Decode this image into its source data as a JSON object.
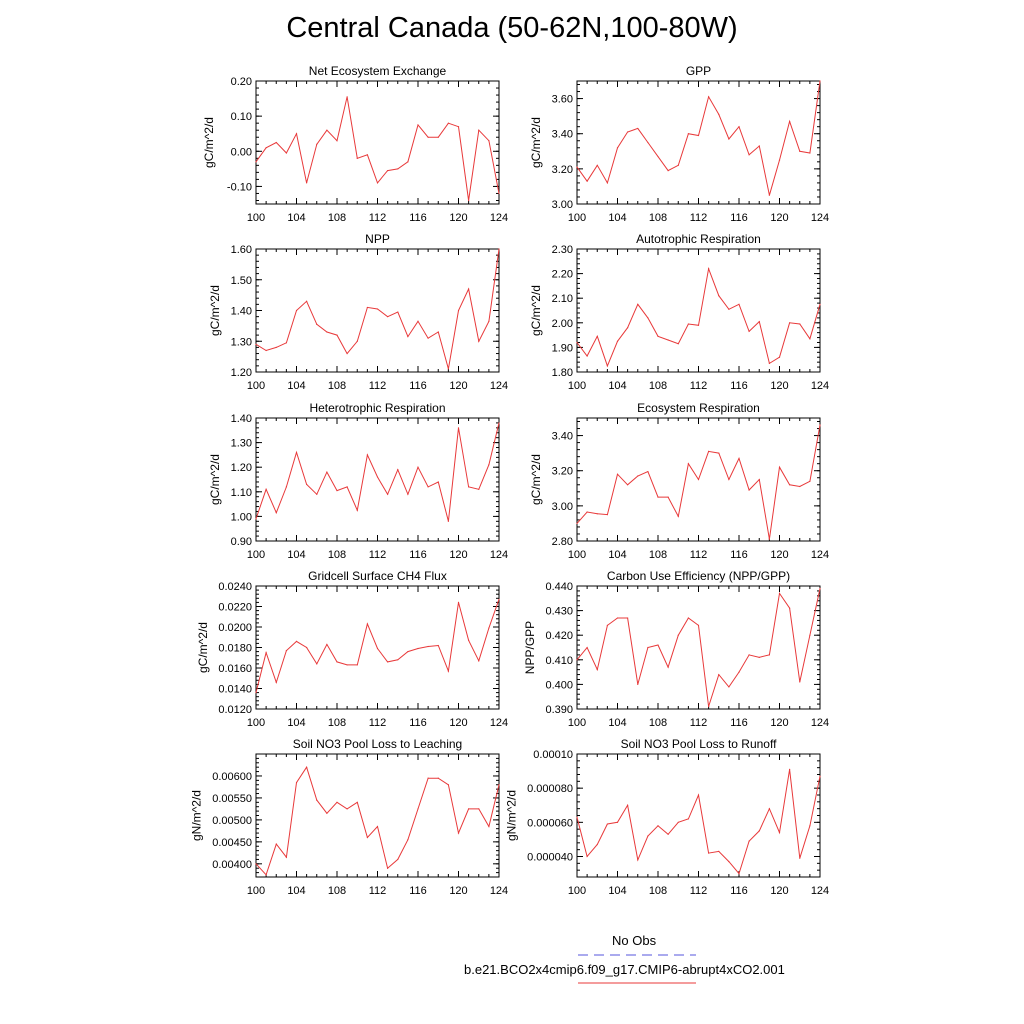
{
  "title": "Central Canada (50-62N,100-80W)",
  "legend": {
    "obs_label": "No Obs",
    "obs_color": "#5555dd",
    "model_label": "b.e21.BCO2x4cmip6.f09_g17.CMIP6-abrupt4xCO2.001",
    "model_color": "#e8393a"
  },
  "chart_data": [
    {
      "type": "line",
      "title": "Net Ecosystem Exchange",
      "ylabel": "gC/m^2/d",
      "xlim": [
        100,
        124
      ],
      "ylim": [
        -0.15,
        0.2
      ],
      "xticks": [
        "100",
        "104",
        "108",
        "112",
        "116",
        "120",
        "124"
      ],
      "yticks": [
        "-0.10",
        "0.00",
        "0.10",
        "0.20"
      ],
      "x": [
        100,
        101,
        102,
        103,
        104,
        105,
        106,
        107,
        108,
        109,
        110,
        111,
        112,
        113,
        114,
        115,
        116,
        117,
        118,
        119,
        120,
        121,
        122,
        123,
        124
      ],
      "series": [
        {
          "values": [
            -0.03,
            0.01,
            0.025,
            -0.005,
            0.05,
            -0.09,
            0.02,
            0.06,
            0.03,
            0.155,
            -0.02,
            -0.01,
            -0.09,
            -0.055,
            -0.05,
            -0.03,
            0.075,
            0.04,
            0.04,
            0.08,
            0.07,
            -0.14,
            0.06,
            0.03,
            -0.12
          ]
        }
      ]
    },
    {
      "type": "line",
      "title": "GPP",
      "ylabel": "gC/m^2/d",
      "xlim": [
        100,
        124
      ],
      "ylim": [
        3.0,
        3.7
      ],
      "xticks": [
        "100",
        "104",
        "108",
        "112",
        "116",
        "120",
        "124"
      ],
      "yticks": [
        "3.00",
        "3.20",
        "3.40",
        "3.60"
      ],
      "x": [
        100,
        101,
        102,
        103,
        104,
        105,
        106,
        107,
        108,
        109,
        110,
        111,
        112,
        113,
        114,
        115,
        116,
        117,
        118,
        119,
        120,
        121,
        122,
        123,
        124
      ],
      "series": [
        {
          "values": [
            3.21,
            3.13,
            3.22,
            3.12,
            3.32,
            3.41,
            3.43,
            3.35,
            3.27,
            3.19,
            3.22,
            3.4,
            3.39,
            3.61,
            3.51,
            3.37,
            3.44,
            3.28,
            3.33,
            3.05,
            3.25,
            3.47,
            3.3,
            3.29,
            3.7
          ]
        }
      ]
    },
    {
      "type": "line",
      "title": "NPP",
      "ylabel": "gC/m^2/d",
      "xlim": [
        100,
        124
      ],
      "ylim": [
        1.2,
        1.6
      ],
      "xticks": [
        "100",
        "104",
        "108",
        "112",
        "116",
        "120",
        "124"
      ],
      "yticks": [
        "1.20",
        "1.30",
        "1.40",
        "1.50",
        "1.60"
      ],
      "x": [
        100,
        101,
        102,
        103,
        104,
        105,
        106,
        107,
        108,
        109,
        110,
        111,
        112,
        113,
        114,
        115,
        116,
        117,
        118,
        119,
        120,
        121,
        122,
        123,
        124
      ],
      "series": [
        {
          "values": [
            1.29,
            1.27,
            1.28,
            1.295,
            1.4,
            1.43,
            1.355,
            1.33,
            1.32,
            1.26,
            1.3,
            1.41,
            1.405,
            1.38,
            1.395,
            1.315,
            1.365,
            1.31,
            1.33,
            1.21,
            1.4,
            1.47,
            1.3,
            1.365,
            1.6
          ]
        }
      ]
    },
    {
      "type": "line",
      "title": "Autotrophic Respiration",
      "ylabel": "gC/m^2/d",
      "xlim": [
        100,
        124
      ],
      "ylim": [
        1.8,
        2.3
      ],
      "xticks": [
        "100",
        "104",
        "108",
        "112",
        "116",
        "120",
        "124"
      ],
      "yticks": [
        "1.80",
        "1.90",
        "2.00",
        "2.10",
        "2.20",
        "2.30"
      ],
      "x": [
        100,
        101,
        102,
        103,
        104,
        105,
        106,
        107,
        108,
        109,
        110,
        111,
        112,
        113,
        114,
        115,
        116,
        117,
        118,
        119,
        120,
        121,
        122,
        123,
        124
      ],
      "series": [
        {
          "values": [
            1.92,
            1.865,
            1.945,
            1.825,
            1.925,
            1.98,
            2.075,
            2.02,
            1.945,
            1.93,
            1.915,
            1.995,
            1.99,
            2.22,
            2.11,
            2.055,
            2.075,
            1.965,
            2.005,
            1.835,
            1.86,
            2.0,
            1.995,
            1.935,
            2.075
          ]
        }
      ]
    },
    {
      "type": "line",
      "title": "Heterotrophic Respiration",
      "ylabel": "gC/m^2/d",
      "xlim": [
        100,
        124
      ],
      "ylim": [
        0.9,
        1.4
      ],
      "xticks": [
        "100",
        "104",
        "108",
        "112",
        "116",
        "120",
        "124"
      ],
      "yticks": [
        "0.90",
        "1.00",
        "1.10",
        "1.20",
        "1.30",
        "1.40"
      ],
      "x": [
        100,
        101,
        102,
        103,
        104,
        105,
        106,
        107,
        108,
        109,
        110,
        111,
        112,
        113,
        114,
        115,
        116,
        117,
        118,
        119,
        120,
        121,
        122,
        123,
        124
      ],
      "series": [
        {
          "values": [
            0.99,
            1.11,
            1.015,
            1.12,
            1.26,
            1.13,
            1.09,
            1.18,
            1.105,
            1.12,
            1.025,
            1.25,
            1.16,
            1.09,
            1.19,
            1.09,
            1.2,
            1.12,
            1.14,
            0.98,
            1.36,
            1.12,
            1.11,
            1.21,
            1.38
          ]
        }
      ]
    },
    {
      "type": "line",
      "title": "Ecosystem Respiration",
      "ylabel": "gC/m^2/d",
      "xlim": [
        100,
        124
      ],
      "ylim": [
        2.8,
        3.5
      ],
      "xticks": [
        "100",
        "104",
        "108",
        "112",
        "116",
        "120",
        "124"
      ],
      "yticks": [
        "2.80",
        "3.00",
        "3.20",
        "3.40"
      ],
      "x": [
        100,
        101,
        102,
        103,
        104,
        105,
        106,
        107,
        108,
        109,
        110,
        111,
        112,
        113,
        114,
        115,
        116,
        117,
        118,
        119,
        120,
        121,
        122,
        123,
        124
      ],
      "series": [
        {
          "values": [
            2.9,
            2.965,
            2.955,
            2.95,
            3.18,
            3.12,
            3.17,
            3.195,
            3.05,
            3.05,
            2.94,
            3.24,
            3.15,
            3.31,
            3.3,
            3.15,
            3.27,
            3.09,
            3.15,
            2.81,
            3.22,
            3.12,
            3.11,
            3.14,
            3.46
          ]
        }
      ]
    },
    {
      "type": "line",
      "title": "Gridcell Surface CH4 Flux",
      "ylabel": "gC/m^2/d",
      "xlim": [
        100,
        124
      ],
      "ylim": [
        0.012,
        0.024
      ],
      "xticks": [
        "100",
        "104",
        "108",
        "112",
        "116",
        "120",
        "124"
      ],
      "yticks": [
        "0.0120",
        "0.0140",
        "0.0160",
        "0.0180",
        "0.0200",
        "0.0220",
        "0.0240"
      ],
      "x": [
        100,
        101,
        102,
        103,
        104,
        105,
        106,
        107,
        108,
        109,
        110,
        111,
        112,
        113,
        114,
        115,
        116,
        117,
        118,
        119,
        120,
        121,
        122,
        123,
        124
      ],
      "series": [
        {
          "values": [
            0.0136,
            0.0175,
            0.0146,
            0.0177,
            0.0186,
            0.018,
            0.0164,
            0.0183,
            0.0166,
            0.0163,
            0.0163,
            0.0203,
            0.0179,
            0.0166,
            0.0168,
            0.0176,
            0.0179,
            0.0181,
            0.0182,
            0.0157,
            0.0224,
            0.0187,
            0.0167,
            0.0199,
            0.0227
          ]
        }
      ]
    },
    {
      "type": "line",
      "title": "Carbon Use Efficiency (NPP/GPP)",
      "ylabel": "NPP/GPP",
      "xlim": [
        100,
        124
      ],
      "ylim": [
        0.39,
        0.44
      ],
      "xticks": [
        "100",
        "104",
        "108",
        "112",
        "116",
        "120",
        "124"
      ],
      "yticks": [
        "0.390",
        "0.400",
        "0.410",
        "0.420",
        "0.430",
        "0.440"
      ],
      "x": [
        100,
        101,
        102,
        103,
        104,
        105,
        106,
        107,
        108,
        109,
        110,
        111,
        112,
        113,
        114,
        115,
        116,
        117,
        118,
        119,
        120,
        121,
        122,
        123,
        124
      ],
      "series": [
        {
          "values": [
            0.41,
            0.415,
            0.406,
            0.424,
            0.427,
            0.427,
            0.4,
            0.415,
            0.416,
            0.407,
            0.42,
            0.427,
            0.424,
            0.391,
            0.404,
            0.399,
            0.405,
            0.412,
            0.411,
            0.412,
            0.437,
            0.431,
            0.401,
            0.42,
            0.439
          ]
        }
      ]
    },
    {
      "type": "line",
      "title": "Soil NO3 Pool Loss to Leaching",
      "ylabel": "gN/m^2/d",
      "xlim": [
        100,
        124
      ],
      "ylim": [
        0.0037,
        0.0065
      ],
      "xticks": [
        "100",
        "104",
        "108",
        "112",
        "116",
        "120",
        "124"
      ],
      "yticks": [
        "0.00400",
        "0.00450",
        "0.00500",
        "0.00550",
        "0.00600"
      ],
      "x": [
        100,
        101,
        102,
        103,
        104,
        105,
        106,
        107,
        108,
        109,
        110,
        111,
        112,
        113,
        114,
        115,
        116,
        117,
        118,
        119,
        120,
        121,
        122,
        123,
        124
      ],
      "series": [
        {
          "values": [
            0.004,
            0.00375,
            0.00445,
            0.00415,
            0.00585,
            0.0062,
            0.00545,
            0.00515,
            0.0054,
            0.00525,
            0.0054,
            0.0046,
            0.00485,
            0.0039,
            0.0041,
            0.00455,
            0.00525,
            0.00595,
            0.00595,
            0.0058,
            0.0047,
            0.00525,
            0.00525,
            0.00485,
            0.0058
          ]
        }
      ]
    },
    {
      "type": "line",
      "title": "Soil NO3 Pool Loss to Runoff",
      "ylabel": "gN/m^2/d",
      "xlim": [
        100,
        124
      ],
      "ylim": [
        2.8e-05,
        0.0001
      ],
      "xticks": [
        "100",
        "104",
        "108",
        "112",
        "116",
        "120",
        "124"
      ],
      "yticks": [
        "0.000040",
        "0.000060",
        "0.000080",
        "0.00010"
      ],
      "x": [
        100,
        101,
        102,
        103,
        104,
        105,
        106,
        107,
        108,
        109,
        110,
        111,
        112,
        113,
        114,
        115,
        116,
        117,
        118,
        119,
        120,
        121,
        122,
        123,
        124
      ],
      "series": [
        {
          "values": [
            6.3e-05,
            4e-05,
            4.7e-05,
            5.9e-05,
            6e-05,
            7e-05,
            3.8e-05,
            5.2e-05,
            5.8e-05,
            5.3e-05,
            6e-05,
            6.2e-05,
            7.6e-05,
            4.2e-05,
            4.3e-05,
            3.7e-05,
            3e-05,
            4.9e-05,
            5.5e-05,
            6.8e-05,
            5.4e-05,
            9.1e-05,
            3.9e-05,
            5.8e-05,
            8.7e-05
          ]
        }
      ]
    }
  ]
}
